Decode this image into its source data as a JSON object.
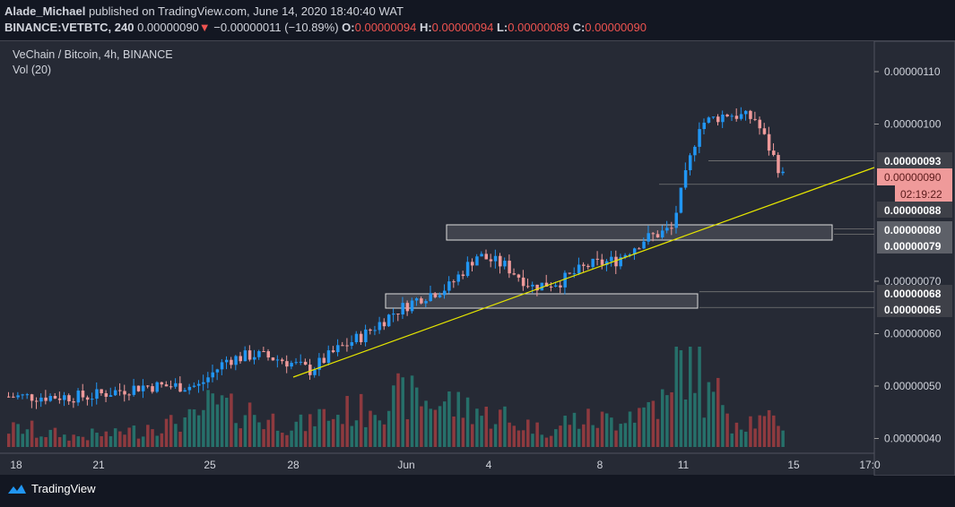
{
  "header": {
    "author": "Alade_Michael",
    "published": "published on TradingView.com, June 14, 2020 18:40:40 WAT",
    "symbol": "BINANCE:VETBTC, 240",
    "last": "0.00000090",
    "change": "−0.00000011 (−10.89%)",
    "o_label": "O:",
    "o": "0.00000094",
    "h_label": "H:",
    "h": "0.00000094",
    "l_label": "L:",
    "l": "0.00000089",
    "c_label": "C:",
    "c": "0.00000090"
  },
  "legend": {
    "title": "VeChain / Bitcoin, 4h, BINANCE",
    "vol": "Vol (20)"
  },
  "price_axis": [
    {
      "v": 110,
      "label": "0.00000110"
    },
    {
      "v": 100,
      "label": "0.00000100"
    },
    {
      "v": 70,
      "label": "0.00000070"
    },
    {
      "v": 60,
      "label": "0.00000060"
    },
    {
      "v": 50,
      "label": "0.00000050"
    },
    {
      "v": 40,
      "label": "0.00000040"
    }
  ],
  "level_labels": [
    {
      "v": 93,
      "label": "0.00000093"
    },
    {
      "v": 88,
      "label": "0.00000088"
    },
    {
      "v": 80,
      "label": "0.00000080"
    },
    {
      "v": 79,
      "label": "0.00000079"
    },
    {
      "v": 68,
      "label": "0.00000068"
    },
    {
      "v": 65,
      "label": "0.00000065"
    }
  ],
  "current": {
    "label": "0.00000090",
    "countdown": "02:19:22",
    "color": "#ef9a9a"
  },
  "time_axis": [
    "18",
    "21",
    "25",
    "28",
    "Jun",
    "4",
    "8",
    "11",
    "15",
    "17:0"
  ],
  "daily_closes": [
    48,
    48,
    48,
    49,
    50,
    50,
    50,
    55,
    56,
    55,
    53,
    57,
    60,
    64,
    67,
    69,
    75,
    73,
    69,
    70,
    73,
    74,
    78,
    80,
    100,
    102,
    101,
    90
  ],
  "daily_volume": [
    20,
    15,
    12,
    14,
    18,
    25,
    30,
    45,
    40,
    30,
    25,
    35,
    40,
    50,
    55,
    50,
    45,
    35,
    25,
    20,
    30,
    30,
    40,
    50,
    95,
    55,
    30,
    28
  ],
  "colors": {
    "up": "#2196f3",
    "down": "#ef9a9a",
    "vol_up": "#26706a",
    "vol_down": "#8e3a3f",
    "trend": "#e6e600"
  },
  "footer": {
    "brand": "TradingView"
  }
}
